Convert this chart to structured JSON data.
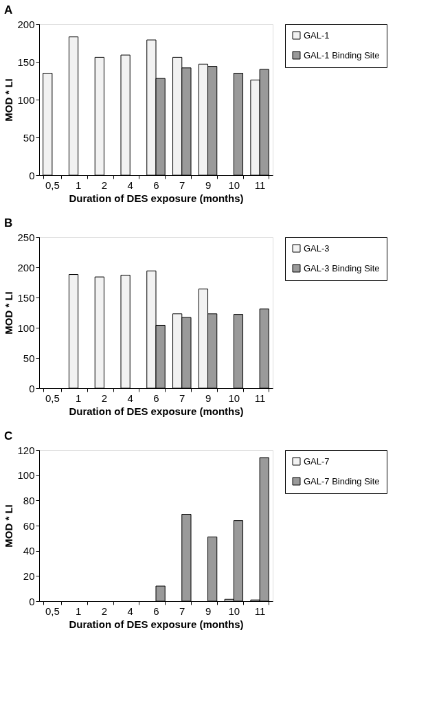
{
  "chart_data": [
    {
      "type": "bar",
      "title": "A",
      "xlabel": "Duration of DES exposure (months)",
      "ylabel": "MOD * LI",
      "categories": [
        "0,5",
        "1",
        "2",
        "4",
        "6",
        "7",
        "9",
        "10",
        "11"
      ],
      "ylim": [
        0,
        200
      ],
      "yticks": [
        0,
        50,
        100,
        150,
        200
      ],
      "grid": false,
      "legend": "right",
      "series": [
        {
          "name": "GAL-1",
          "color": "#f2f2f2",
          "values": [
            135,
            183,
            156,
            159,
            179,
            156,
            147,
            null,
            126
          ]
        },
        {
          "name": "GAL-1 Binding Site",
          "color": "#9a9a9a",
          "values": [
            null,
            null,
            null,
            null,
            128,
            142,
            144,
            135,
            140
          ]
        }
      ]
    },
    {
      "type": "bar",
      "title": "B",
      "xlabel": "Duration of DES exposure (months)",
      "ylabel": "MOD * LI",
      "categories": [
        "0,5",
        "1",
        "2",
        "4",
        "6",
        "7",
        "9",
        "10",
        "11"
      ],
      "ylim": [
        0,
        250
      ],
      "yticks": [
        0,
        50,
        100,
        150,
        200,
        250
      ],
      "grid": false,
      "legend": "right",
      "series": [
        {
          "name": "GAL-3",
          "color": "#f2f2f2",
          "values": [
            null,
            188,
            184,
            187,
            194,
            123,
            164,
            null,
            null
          ]
        },
        {
          "name": "GAL-3 Binding Site",
          "color": "#9a9a9a",
          "values": [
            null,
            null,
            null,
            null,
            104,
            117,
            123,
            122,
            131
          ]
        }
      ]
    },
    {
      "type": "bar",
      "title": "C",
      "xlabel": "Duration of DES exposure (months)",
      "ylabel": "MOD * LI",
      "categories": [
        "0,5",
        "1",
        "2",
        "4",
        "6",
        "7",
        "9",
        "10",
        "11"
      ],
      "ylim": [
        0,
        120
      ],
      "yticks": [
        0,
        20,
        40,
        60,
        80,
        100,
        120
      ],
      "grid": false,
      "legend": "right",
      "series": [
        {
          "name": "GAL-7",
          "color": "#f2f2f2",
          "values": [
            null,
            null,
            null,
            null,
            null,
            null,
            null,
            1.5,
            1
          ]
        },
        {
          "name": "GAL-7 Binding Site",
          "color": "#9a9a9a",
          "values": [
            null,
            null,
            null,
            null,
            12,
            69,
            51,
            64,
            114
          ]
        }
      ]
    }
  ]
}
